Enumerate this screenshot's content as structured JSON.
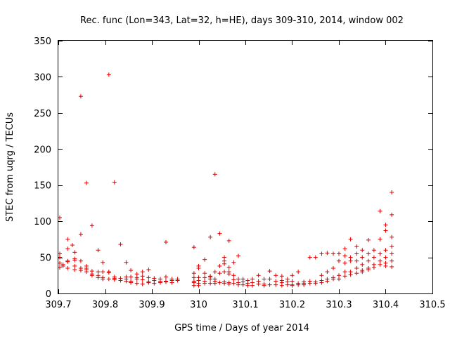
{
  "chart_data": {
    "type": "scatter",
    "title": "Rec. func (Lon=343, Lat=32, h=HE), days 309-310, 2014, window 002",
    "xlabel": "GPS time / Days of year 2014",
    "ylabel": "STEC from uqrg / TECUs",
    "xlim": [
      309.7,
      310.5
    ],
    "ylim": [
      0,
      350
    ],
    "xticks": [
      309.7,
      309.8,
      309.9,
      310.0,
      310.1,
      310.2,
      310.3,
      310.4,
      310.5
    ],
    "xtick_labels": [
      "309.7",
      "309.8",
      "309.9",
      "310",
      "310.1",
      "310.2",
      "310.3",
      "310.4",
      "310.5"
    ],
    "yticks": [
      0,
      50,
      100,
      150,
      200,
      250,
      300,
      350
    ],
    "ytick_labels": [
      "0",
      "50",
      "100",
      "150",
      "200",
      "250",
      "300",
      "350"
    ],
    "grid": false,
    "colors": {
      "series": "#dd0000",
      "axes": "#000000"
    },
    "series": [
      {
        "name": "STEC",
        "marker": "plus",
        "points": [
          [
            309.703,
            105
          ],
          [
            309.703,
            55
          ],
          [
            309.703,
            50
          ],
          [
            309.703,
            42
          ],
          [
            309.703,
            36
          ],
          [
            309.71,
            38
          ],
          [
            309.71,
            40
          ],
          [
            309.72,
            75
          ],
          [
            309.72,
            62
          ],
          [
            309.72,
            45
          ],
          [
            309.72,
            44
          ],
          [
            309.72,
            35
          ],
          [
            309.73,
            67
          ],
          [
            309.735,
            57
          ],
          [
            309.735,
            48
          ],
          [
            309.735,
            46
          ],
          [
            309.735,
            38
          ],
          [
            309.735,
            33
          ],
          [
            309.748,
            273
          ],
          [
            309.748,
            82
          ],
          [
            309.748,
            45
          ],
          [
            309.748,
            35
          ],
          [
            309.748,
            32
          ],
          [
            309.76,
            153
          ],
          [
            309.76,
            38
          ],
          [
            309.76,
            35
          ],
          [
            309.76,
            33
          ],
          [
            309.76,
            30
          ],
          [
            309.772,
            94
          ],
          [
            309.772,
            31
          ],
          [
            309.772,
            27
          ],
          [
            309.772,
            25
          ],
          [
            309.785,
            60
          ],
          [
            309.785,
            30
          ],
          [
            309.785,
            25
          ],
          [
            309.785,
            22
          ],
          [
            309.795,
            43
          ],
          [
            309.795,
            30
          ],
          [
            309.795,
            22
          ],
          [
            309.795,
            20
          ],
          [
            309.808,
            303
          ],
          [
            309.808,
            30
          ],
          [
            309.808,
            29
          ],
          [
            309.808,
            20
          ],
          [
            309.82,
            154
          ],
          [
            309.82,
            23
          ],
          [
            309.82,
            21
          ],
          [
            309.82,
            19
          ],
          [
            309.833,
            68
          ],
          [
            309.833,
            21
          ],
          [
            309.833,
            18
          ],
          [
            309.845,
            43
          ],
          [
            309.845,
            23
          ],
          [
            309.845,
            20
          ],
          [
            309.845,
            17
          ],
          [
            309.855,
            32
          ],
          [
            309.855,
            23
          ],
          [
            309.855,
            17
          ],
          [
            309.855,
            15
          ],
          [
            309.868,
            27
          ],
          [
            309.868,
            22
          ],
          [
            309.868,
            20
          ],
          [
            309.868,
            14
          ],
          [
            309.88,
            30
          ],
          [
            309.88,
            24
          ],
          [
            309.88,
            19
          ],
          [
            309.88,
            13
          ],
          [
            309.893,
            33
          ],
          [
            309.893,
            22
          ],
          [
            309.893,
            16
          ],
          [
            309.893,
            15
          ],
          [
            309.905,
            21
          ],
          [
            309.905,
            18
          ],
          [
            309.905,
            14
          ],
          [
            309.918,
            20
          ],
          [
            309.918,
            17
          ],
          [
            309.918,
            15
          ],
          [
            309.93,
            71
          ],
          [
            309.93,
            23
          ],
          [
            309.93,
            17
          ],
          [
            309.93,
            16
          ],
          [
            309.943,
            20
          ],
          [
            309.943,
            18
          ],
          [
            309.943,
            15
          ],
          [
            309.955,
            20
          ],
          [
            309.955,
            18
          ],
          [
            309.99,
            64
          ],
          [
            309.99,
            28
          ],
          [
            309.99,
            22
          ],
          [
            309.99,
            17
          ],
          [
            309.99,
            15
          ],
          [
            309.99,
            11
          ],
          [
            310.0,
            38
          ],
          [
            310.0,
            35
          ],
          [
            310.0,
            22
          ],
          [
            310.0,
            18
          ],
          [
            310.0,
            14
          ],
          [
            310.0,
            11
          ],
          [
            310.013,
            47
          ],
          [
            310.013,
            28
          ],
          [
            310.013,
            22
          ],
          [
            310.013,
            17
          ],
          [
            310.013,
            14
          ],
          [
            310.025,
            78
          ],
          [
            310.025,
            24
          ],
          [
            310.025,
            23
          ],
          [
            310.025,
            20
          ],
          [
            310.025,
            14
          ],
          [
            310.035,
            165
          ],
          [
            310.035,
            30
          ],
          [
            310.035,
            20
          ],
          [
            310.035,
            17
          ],
          [
            310.035,
            14
          ],
          [
            310.045,
            83
          ],
          [
            310.045,
            38
          ],
          [
            310.045,
            28
          ],
          [
            310.045,
            15
          ],
          [
            310.055,
            50
          ],
          [
            310.055,
            45
          ],
          [
            310.055,
            41
          ],
          [
            310.055,
            30
          ],
          [
            310.055,
            16
          ],
          [
            310.055,
            14
          ],
          [
            310.065,
            73
          ],
          [
            310.065,
            36
          ],
          [
            310.065,
            30
          ],
          [
            310.065,
            27
          ],
          [
            310.065,
            15
          ],
          [
            310.065,
            13
          ],
          [
            310.075,
            43
          ],
          [
            310.075,
            25
          ],
          [
            310.075,
            19
          ],
          [
            310.075,
            14
          ],
          [
            310.085,
            52
          ],
          [
            310.085,
            20
          ],
          [
            310.085,
            15
          ],
          [
            310.085,
            12
          ],
          [
            310.095,
            20
          ],
          [
            310.095,
            16
          ],
          [
            310.095,
            12
          ],
          [
            310.105,
            18
          ],
          [
            310.105,
            14
          ],
          [
            310.105,
            11
          ],
          [
            310.115,
            20
          ],
          [
            310.115,
            15
          ],
          [
            310.115,
            11
          ],
          [
            310.128,
            25
          ],
          [
            310.128,
            17
          ],
          [
            310.128,
            13
          ],
          [
            310.14,
            20
          ],
          [
            310.14,
            13
          ],
          [
            310.14,
            11
          ],
          [
            310.152,
            31
          ],
          [
            310.152,
            20
          ],
          [
            310.152,
            12
          ],
          [
            310.165,
            25
          ],
          [
            310.165,
            17
          ],
          [
            310.165,
            12
          ],
          [
            310.178,
            24
          ],
          [
            310.178,
            18
          ],
          [
            310.178,
            15
          ],
          [
            310.178,
            11
          ],
          [
            310.19,
            20
          ],
          [
            310.19,
            16
          ],
          [
            310.19,
            12
          ],
          [
            310.2,
            25
          ],
          [
            310.2,
            17
          ],
          [
            310.2,
            12
          ],
          [
            310.2,
            11
          ],
          [
            310.213,
            30
          ],
          [
            310.213,
            14
          ],
          [
            310.213,
            12
          ],
          [
            310.225,
            16
          ],
          [
            310.225,
            14
          ],
          [
            310.225,
            12
          ],
          [
            310.238,
            50
          ],
          [
            310.238,
            17
          ],
          [
            310.238,
            14
          ],
          [
            310.25,
            50
          ],
          [
            310.25,
            16
          ],
          [
            310.25,
            14
          ],
          [
            310.263,
            55
          ],
          [
            310.263,
            25
          ],
          [
            310.263,
            18
          ],
          [
            310.263,
            15
          ],
          [
            310.275,
            56
          ],
          [
            310.275,
            30
          ],
          [
            310.275,
            20
          ],
          [
            310.275,
            17
          ],
          [
            310.288,
            55
          ],
          [
            310.288,
            35
          ],
          [
            310.288,
            22
          ],
          [
            310.288,
            20
          ],
          [
            310.3,
            55
          ],
          [
            310.3,
            45
          ],
          [
            310.3,
            25
          ],
          [
            310.3,
            20
          ],
          [
            310.313,
            62
          ],
          [
            310.313,
            52
          ],
          [
            310.313,
            42
          ],
          [
            310.313,
            30
          ],
          [
            310.313,
            24
          ],
          [
            310.325,
            75
          ],
          [
            310.325,
            50
          ],
          [
            310.325,
            45
          ],
          [
            310.325,
            30
          ],
          [
            310.325,
            26
          ],
          [
            310.338,
            65
          ],
          [
            310.338,
            55
          ],
          [
            310.338,
            45
          ],
          [
            310.338,
            35
          ],
          [
            310.338,
            28
          ],
          [
            310.35,
            60
          ],
          [
            310.35,
            50
          ],
          [
            310.35,
            40
          ],
          [
            310.35,
            32
          ],
          [
            310.35,
            30
          ],
          [
            310.363,
            74
          ],
          [
            310.363,
            55
          ],
          [
            310.363,
            45
          ],
          [
            310.363,
            35
          ],
          [
            310.363,
            33
          ],
          [
            310.375,
            60
          ],
          [
            310.375,
            50
          ],
          [
            310.375,
            40
          ],
          [
            310.375,
            36
          ],
          [
            310.388,
            114
          ],
          [
            310.388,
            75
          ],
          [
            310.388,
            55
          ],
          [
            310.388,
            45
          ],
          [
            310.388,
            40
          ],
          [
            310.4,
            95
          ],
          [
            310.4,
            87
          ],
          [
            310.4,
            60
          ],
          [
            310.4,
            50
          ],
          [
            310.4,
            42
          ],
          [
            310.4,
            38
          ],
          [
            310.413,
            140
          ],
          [
            310.413,
            109
          ],
          [
            310.413,
            78
          ],
          [
            310.413,
            65
          ],
          [
            310.413,
            55
          ],
          [
            310.413,
            45
          ],
          [
            310.413,
            37
          ]
        ]
      }
    ]
  }
}
